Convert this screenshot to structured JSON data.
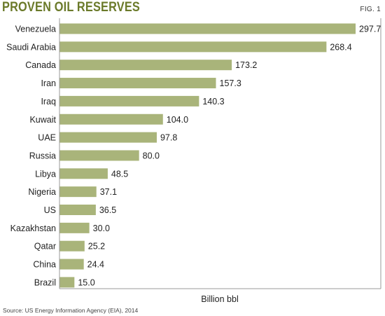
{
  "header": {
    "title": "PROVEN OIL RESERVES",
    "fig_label": "FIG. 1"
  },
  "footer": {
    "source": "Source: US Energy Information Agency (EIA), 2014"
  },
  "colors": {
    "bar": "#a9b47a",
    "title": "#6b7a2a",
    "axis": "#999999"
  },
  "chart_data": {
    "type": "bar",
    "orientation": "horizontal",
    "title": "PROVEN OIL RESERVES",
    "xlabel": "Billion bbl",
    "ylabel": "",
    "xlim": [
      0,
      300
    ],
    "grid": false,
    "categories": [
      "Venezuela",
      "Saudi Arabia",
      "Canada",
      "Iran",
      "Iraq",
      "Kuwait",
      "UAE",
      "Russia",
      "Libya",
      "Nigeria",
      "US",
      "Kazakhstan",
      "Qatar",
      "China",
      "Brazil"
    ],
    "values": [
      297.7,
      268.4,
      173.2,
      157.3,
      140.3,
      104.0,
      97.8,
      80.0,
      48.5,
      37.1,
      36.5,
      30.0,
      25.2,
      24.4,
      15.0
    ],
    "value_labels": [
      "297.7",
      "268.4",
      "173.2",
      "157.3",
      "140.3",
      "104.0",
      "97.8",
      "80.0",
      "48.5",
      "37.1",
      "36.5",
      "30.0",
      "25.2",
      "24.4",
      "15.0"
    ]
  }
}
